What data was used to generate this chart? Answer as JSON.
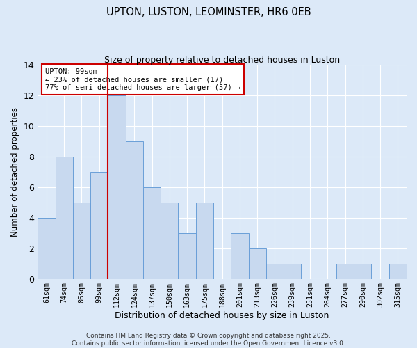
{
  "title": "UPTON, LUSTON, LEOMINSTER, HR6 0EB",
  "subtitle": "Size of property relative to detached houses in Luston",
  "xlabel": "Distribution of detached houses by size in Luston",
  "ylabel": "Number of detached properties",
  "categories": [
    "61sqm",
    "74sqm",
    "86sqm",
    "99sqm",
    "112sqm",
    "124sqm",
    "137sqm",
    "150sqm",
    "163sqm",
    "175sqm",
    "188sqm",
    "201sqm",
    "213sqm",
    "226sqm",
    "239sqm",
    "251sqm",
    "264sqm",
    "277sqm",
    "290sqm",
    "302sqm",
    "315sqm"
  ],
  "values": [
    4,
    8,
    5,
    7,
    12,
    9,
    6,
    5,
    3,
    5,
    0,
    3,
    2,
    1,
    1,
    0,
    0,
    1,
    1,
    0,
    1
  ],
  "bar_color": "#c8d9ef",
  "bar_edge_color": "#6a9fd8",
  "vline_x_index": 3,
  "vline_color": "#cc0000",
  "annotation_line1": "UPTON: 99sqm",
  "annotation_line2": "← 23% of detached houses are smaller (17)",
  "annotation_line3": "77% of semi-detached houses are larger (57) →",
  "annotation_box_color": "white",
  "annotation_box_edge_color": "#cc0000",
  "ylim": [
    0,
    14
  ],
  "yticks": [
    0,
    2,
    4,
    6,
    8,
    10,
    12,
    14
  ],
  "bg_color": "#dce9f8",
  "grid_color": "#ffffff",
  "footer_line1": "Contains HM Land Registry data © Crown copyright and database right 2025.",
  "footer_line2": "Contains public sector information licensed under the Open Government Licence v3.0."
}
